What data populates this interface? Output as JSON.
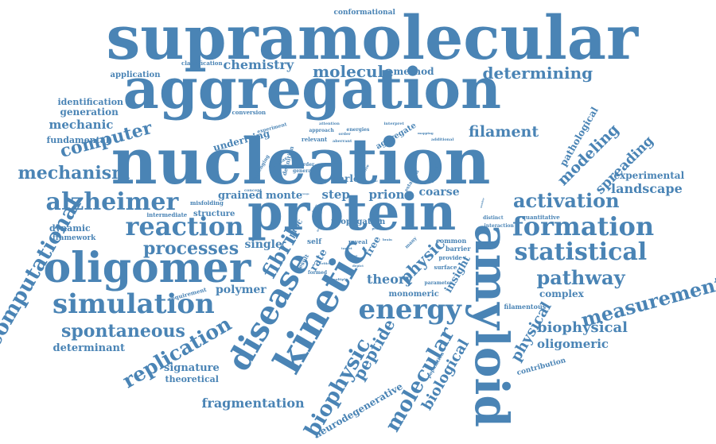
{
  "color": "#4a84b5",
  "words": [
    {
      "text": "supramolecular",
      "weight": 1.0,
      "rot": 0
    },
    {
      "text": "aggregation",
      "weight": 0.95,
      "rot": 0
    },
    {
      "text": "nucleation",
      "weight": 0.95,
      "rot": 0
    },
    {
      "text": "protein",
      "weight": 0.85,
      "rot": 0
    },
    {
      "text": "amyloid",
      "weight": 0.85,
      "rot": 90
    },
    {
      "text": "kinetic",
      "weight": 0.7,
      "rot": -60
    },
    {
      "text": "oligomer",
      "weight": 0.6,
      "rot": 0
    },
    {
      "text": "disease",
      "weight": 0.55,
      "rot": -60
    },
    {
      "text": "simulation",
      "weight": 0.45,
      "rot": 0
    },
    {
      "text": "formation",
      "weight": 0.45,
      "rot": 0
    },
    {
      "text": "energy",
      "weight": 0.45,
      "rot": 0
    },
    {
      "text": "statistical",
      "weight": 0.42,
      "rot": 0
    },
    {
      "text": "reaction",
      "weight": 0.4,
      "rot": 0
    },
    {
      "text": "alzheimer",
      "weight": 0.4,
      "rot": 0
    },
    {
      "text": "computational",
      "weight": 0.35,
      "rot": -60
    },
    {
      "text": "measurement",
      "weight": 0.33,
      "rot": -15
    },
    {
      "text": "replication",
      "weight": 0.33,
      "rot": -30
    },
    {
      "text": "fibril",
      "weight": 0.33,
      "rot": -60
    },
    {
      "text": "molecular",
      "weight": 0.33,
      "rot": -60
    },
    {
      "text": "biophysic",
      "weight": 0.33,
      "rot": -60
    },
    {
      "text": "pathway",
      "weight": 0.3,
      "rot": 0
    },
    {
      "text": "activation",
      "weight": 0.3,
      "rot": 0
    },
    {
      "text": "mechanism",
      "weight": 0.3,
      "rot": 0
    },
    {
      "text": "computer",
      "weight": 0.3,
      "rot": -15
    },
    {
      "text": "spontaneous",
      "weight": 0.28,
      "rot": 0
    },
    {
      "text": "processes",
      "weight": 0.28,
      "rot": 0
    },
    {
      "text": "determining",
      "weight": 0.27,
      "rot": 0
    },
    {
      "text": "molecule",
      "weight": 0.27,
      "rot": 0
    },
    {
      "text": "filament",
      "weight": 0.27,
      "rot": 0
    },
    {
      "text": "peptide",
      "weight": 0.27,
      "rot": -60
    },
    {
      "text": "physic",
      "weight": 0.27,
      "rot": -45
    },
    {
      "text": "modeling",
      "weight": 0.26,
      "rot": -45
    },
    {
      "text": "propagation",
      "weight": 0.25,
      "rot": 0
    },
    {
      "text": "spreading",
      "weight": 0.24,
      "rot": -45
    },
    {
      "text": "biological",
      "weight": 0.24,
      "rot": -60
    },
    {
      "text": "biophysical",
      "weight": 0.24,
      "rot": 0
    },
    {
      "text": "physical",
      "weight": 0.22,
      "rot": -60
    },
    {
      "text": "landscape",
      "weight": 0.22,
      "rot": 0
    },
    {
      "text": "chemistry",
      "weight": 0.2,
      "rot": 0
    },
    {
      "text": "fragmentation",
      "weight": 0.2,
      "rot": 0
    },
    {
      "text": "mechanic",
      "weight": 0.2,
      "rot": 0
    },
    {
      "text": "theory",
      "weight": 0.2,
      "rot": 0
    },
    {
      "text": "prion",
      "weight": 0.2,
      "rot": 0
    },
    {
      "text": "coarse",
      "weight": 0.2,
      "rot": 0
    },
    {
      "text": "oligomeric",
      "weight": 0.2,
      "rot": 0
    },
    {
      "text": "step",
      "weight": 0.2,
      "rot": 0
    },
    {
      "text": "polymer",
      "weight": 0.18,
      "rot": 0
    },
    {
      "text": "single",
      "weight": 0.18,
      "rot": 0
    },
    {
      "text": "determinant",
      "weight": 0.17,
      "rot": 0
    },
    {
      "text": "signature",
      "weight": 0.17,
      "rot": 0
    },
    {
      "text": "pathological",
      "weight": 0.17,
      "rot": -60
    },
    {
      "text": "experimental",
      "weight": 0.16,
      "rot": 0
    },
    {
      "text": "insight",
      "weight": 0.16,
      "rot": -60
    },
    {
      "text": "neurodegenerative",
      "weight": 0.15,
      "rot": -30
    },
    {
      "text": "complex",
      "weight": 0.15,
      "rot": 0
    },
    {
      "text": "underlying",
      "weight": 0.15,
      "rot": -15
    },
    {
      "text": "grained",
      "weight": 0.15,
      "rot": 0
    },
    {
      "text": "monte",
      "weight": 0.15,
      "rot": 0
    },
    {
      "text": "carlo",
      "weight": 0.15,
      "rot": 0
    },
    {
      "text": "rate",
      "weight": 0.15,
      "rot": -60
    },
    {
      "text": "free",
      "weight": 0.15,
      "rot": -60
    },
    {
      "text": "method",
      "weight": 0.15,
      "rot": 0
    },
    {
      "text": "generation",
      "weight": 0.15,
      "rot": 0
    },
    {
      "text": "identification",
      "weight": 0.14,
      "rot": 0
    },
    {
      "text": "application",
      "weight": 0.13,
      "rot": 0
    },
    {
      "text": "fundamental",
      "weight": 0.13,
      "rot": 0
    },
    {
      "text": "dynamic",
      "weight": 0.13,
      "rot": 0
    },
    {
      "text": "framework",
      "weight": 0.11,
      "rot": 0
    },
    {
      "text": "theoretical",
      "weight": 0.13,
      "rot": 0
    },
    {
      "text": "monomeric",
      "weight": 0.13,
      "rot": 0
    },
    {
      "text": "aggregate",
      "weight": 0.12,
      "rot": -30
    },
    {
      "text": "structure",
      "weight": 0.12,
      "rot": 0
    },
    {
      "text": "proc",
      "weight": 0.12,
      "rot": -60
    },
    {
      "text": "contribution",
      "weight": 0.11,
      "rot": -15
    },
    {
      "text": "filamentous",
      "weight": 0.1,
      "rot": 0
    },
    {
      "text": "quantitative",
      "weight": 0.09,
      "rot": 0
    },
    {
      "text": "conformational",
      "weight": 0.1,
      "rot": 0
    },
    {
      "text": "classification",
      "weight": 0.09,
      "rot": 0
    },
    {
      "text": "conversion",
      "weight": 0.09,
      "rot": 0
    },
    {
      "text": "misfolding",
      "weight": 0.09,
      "rot": 0
    },
    {
      "text": "intermediate",
      "weight": 0.09,
      "rot": 0
    },
    {
      "text": "requirement",
      "weight": 0.09,
      "rot": -15
    },
    {
      "text": "definition",
      "weight": 0.09,
      "rot": -75
    },
    {
      "text": "relevant",
      "weight": 0.09,
      "rot": 0
    },
    {
      "text": "experiment",
      "weight": 0.08,
      "rot": -15
    },
    {
      "text": "approach",
      "weight": 0.08,
      "rot": 0
    },
    {
      "text": "attention",
      "weight": 0.07,
      "rot": 0
    },
    {
      "text": "energies",
      "weight": 0.08,
      "rot": 0
    },
    {
      "text": "interpret",
      "weight": 0.07,
      "rot": 0
    },
    {
      "text": "additional",
      "weight": 0.07,
      "rot": 0
    },
    {
      "text": "aberrant",
      "weight": 0.07,
      "rot": 0
    },
    {
      "text": "mapping",
      "weight": 0.06,
      "rot": 0
    },
    {
      "text": "challenging",
      "weight": 0.07,
      "rot": -60
    },
    {
      "text": "disorder",
      "weight": 0.07,
      "rot": 0
    },
    {
      "text": "general",
      "weight": 0.08,
      "rot": 0
    },
    {
      "text": "fibrillar",
      "weight": 0.07,
      "rot": -30
    },
    {
      "text": "involve",
      "weight": 0.06,
      "rot": -60
    },
    {
      "text": "establish",
      "weight": 0.07,
      "rot": -60
    },
    {
      "text": "different",
      "weight": 0.06,
      "rot": -75
    },
    {
      "text": "concept",
      "weight": 0.06,
      "rot": 0
    },
    {
      "text": "order",
      "weight": 0.06,
      "rot": 0
    },
    {
      "text": "self",
      "weight": 0.1,
      "rot": 0
    },
    {
      "text": "distinct",
      "weight": 0.08,
      "rot": 0
    },
    {
      "text": "interaction",
      "weight": 0.08,
      "rot": 0
    },
    {
      "text": "time",
      "weight": 0.08,
      "rot": 0
    },
    {
      "text": "reveal",
      "weight": 0.09,
      "rot": 0
    },
    {
      "text": "common",
      "weight": 0.1,
      "rot": 0
    },
    {
      "text": "barrier",
      "weight": 0.1,
      "rot": 0
    },
    {
      "text": "provide",
      "weight": 0.09,
      "rot": 0
    },
    {
      "text": "surface",
      "weight": 0.09,
      "rot": 0
    },
    {
      "text": "parameter",
      "weight": 0.08,
      "rot": 0
    },
    {
      "text": "population",
      "weight": 0.08,
      "rot": -60
    },
    {
      "text": "result",
      "weight": 0.09,
      "rot": -60
    },
    {
      "text": "formed",
      "weight": 0.07,
      "rot": 0
    },
    {
      "text": "critical",
      "weight": 0.05,
      "rot": 0
    },
    {
      "text": "multiple",
      "weight": 0.05,
      "rot": 0
    },
    {
      "text": "depict",
      "weight": 0.05,
      "rot": 0
    },
    {
      "text": "target",
      "weight": 0.05,
      "rot": 0
    },
    {
      "text": "brain",
      "weight": 0.05,
      "rot": 0
    },
    {
      "text": "many",
      "weight": 0.07,
      "rot": -45
    },
    {
      "text": "probe",
      "weight": 0.05,
      "rot": 0
    },
    {
      "text": "variety",
      "weight": 0.04,
      "rot": -60
    },
    {
      "text": "number",
      "weight": 0.04,
      "rot": -75
    },
    {
      "text": "degree",
      "weight": 0.04,
      "rot": -60
    },
    {
      "text": "factor",
      "weight": 0.04,
      "rot": 0
    },
    {
      "text": "growth",
      "weight": 0.04,
      "rot": -60
    },
    {
      "text": "early",
      "weight": 0.04,
      "rot": 0
    },
    {
      "text": "range",
      "weight": 0.04,
      "rot": 0
    },
    {
      "text": "based",
      "weight": 0.04,
      "rot": 0
    },
    {
      "text": "occur",
      "weight": 0.04,
      "rot": 0
    },
    {
      "text": "level",
      "weight": 0.04,
      "rot": 0
    }
  ]
}
